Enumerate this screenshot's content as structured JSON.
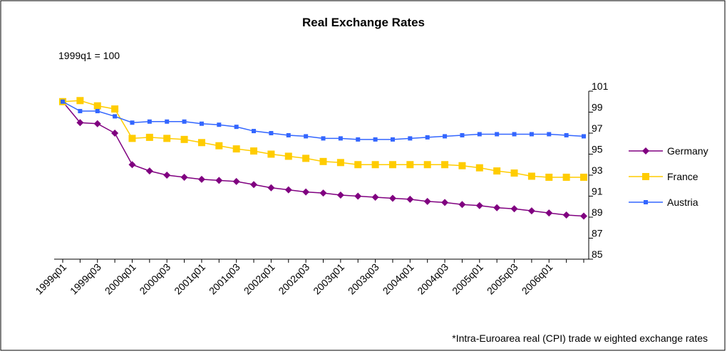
{
  "chart_data": {
    "type": "line",
    "title": "Real Exchange Rates",
    "subtitle": "1999q1 = 100",
    "footnote": "*Intra-Euroarea real (CPI) trade w eighted exchange rates",
    "categories": [
      "1999q01",
      null,
      "1999q03",
      null,
      "2000q01",
      null,
      "2000q03",
      null,
      "2001q01",
      null,
      "2001q03",
      null,
      "2002q01",
      null,
      "2002q03",
      null,
      "2003q01",
      null,
      "2003q03",
      null,
      "2004q01",
      null,
      "2004q03",
      null,
      "2005q01",
      null,
      "2005q03",
      null,
      "2006q01",
      null,
      null
    ],
    "series": [
      {
        "name": "Germany",
        "color": "#800080",
        "marker": "diamond",
        "values": [
          100,
          98.0,
          97.9,
          97.0,
          94.0,
          93.4,
          93.0,
          92.8,
          92.6,
          92.5,
          92.4,
          92.1,
          91.8,
          91.6,
          91.4,
          91.3,
          91.1,
          91.0,
          90.9,
          90.8,
          90.7,
          90.5,
          90.4,
          90.2,
          90.1,
          89.9,
          89.8,
          89.6,
          89.4,
          89.2,
          89.1
        ]
      },
      {
        "name": "France",
        "color": "#ffcc00",
        "marker": "square",
        "values": [
          100,
          100.1,
          99.6,
          99.3,
          96.5,
          96.6,
          96.5,
          96.4,
          96.1,
          95.8,
          95.5,
          95.3,
          95.0,
          94.8,
          94.6,
          94.3,
          94.2,
          94.0,
          94.0,
          94.0,
          94.0,
          94.0,
          94.0,
          93.9,
          93.7,
          93.4,
          93.2,
          92.9,
          92.8,
          92.8,
          92.8
        ]
      },
      {
        "name": "Austria",
        "color": "#3366ff",
        "marker": "small-square",
        "values": [
          100,
          99.1,
          99.1,
          98.6,
          98.0,
          98.1,
          98.1,
          98.1,
          97.9,
          97.8,
          97.6,
          97.2,
          97.0,
          96.8,
          96.7,
          96.5,
          96.5,
          96.4,
          96.4,
          96.4,
          96.5,
          96.6,
          96.7,
          96.8,
          96.9,
          96.9,
          96.9,
          96.9,
          96.9,
          96.8,
          96.7
        ]
      }
    ],
    "ylim": [
      85,
      101
    ],
    "yticks": [
      85,
      87,
      89,
      91,
      93,
      95,
      97,
      99,
      101
    ],
    "legend": "right"
  }
}
